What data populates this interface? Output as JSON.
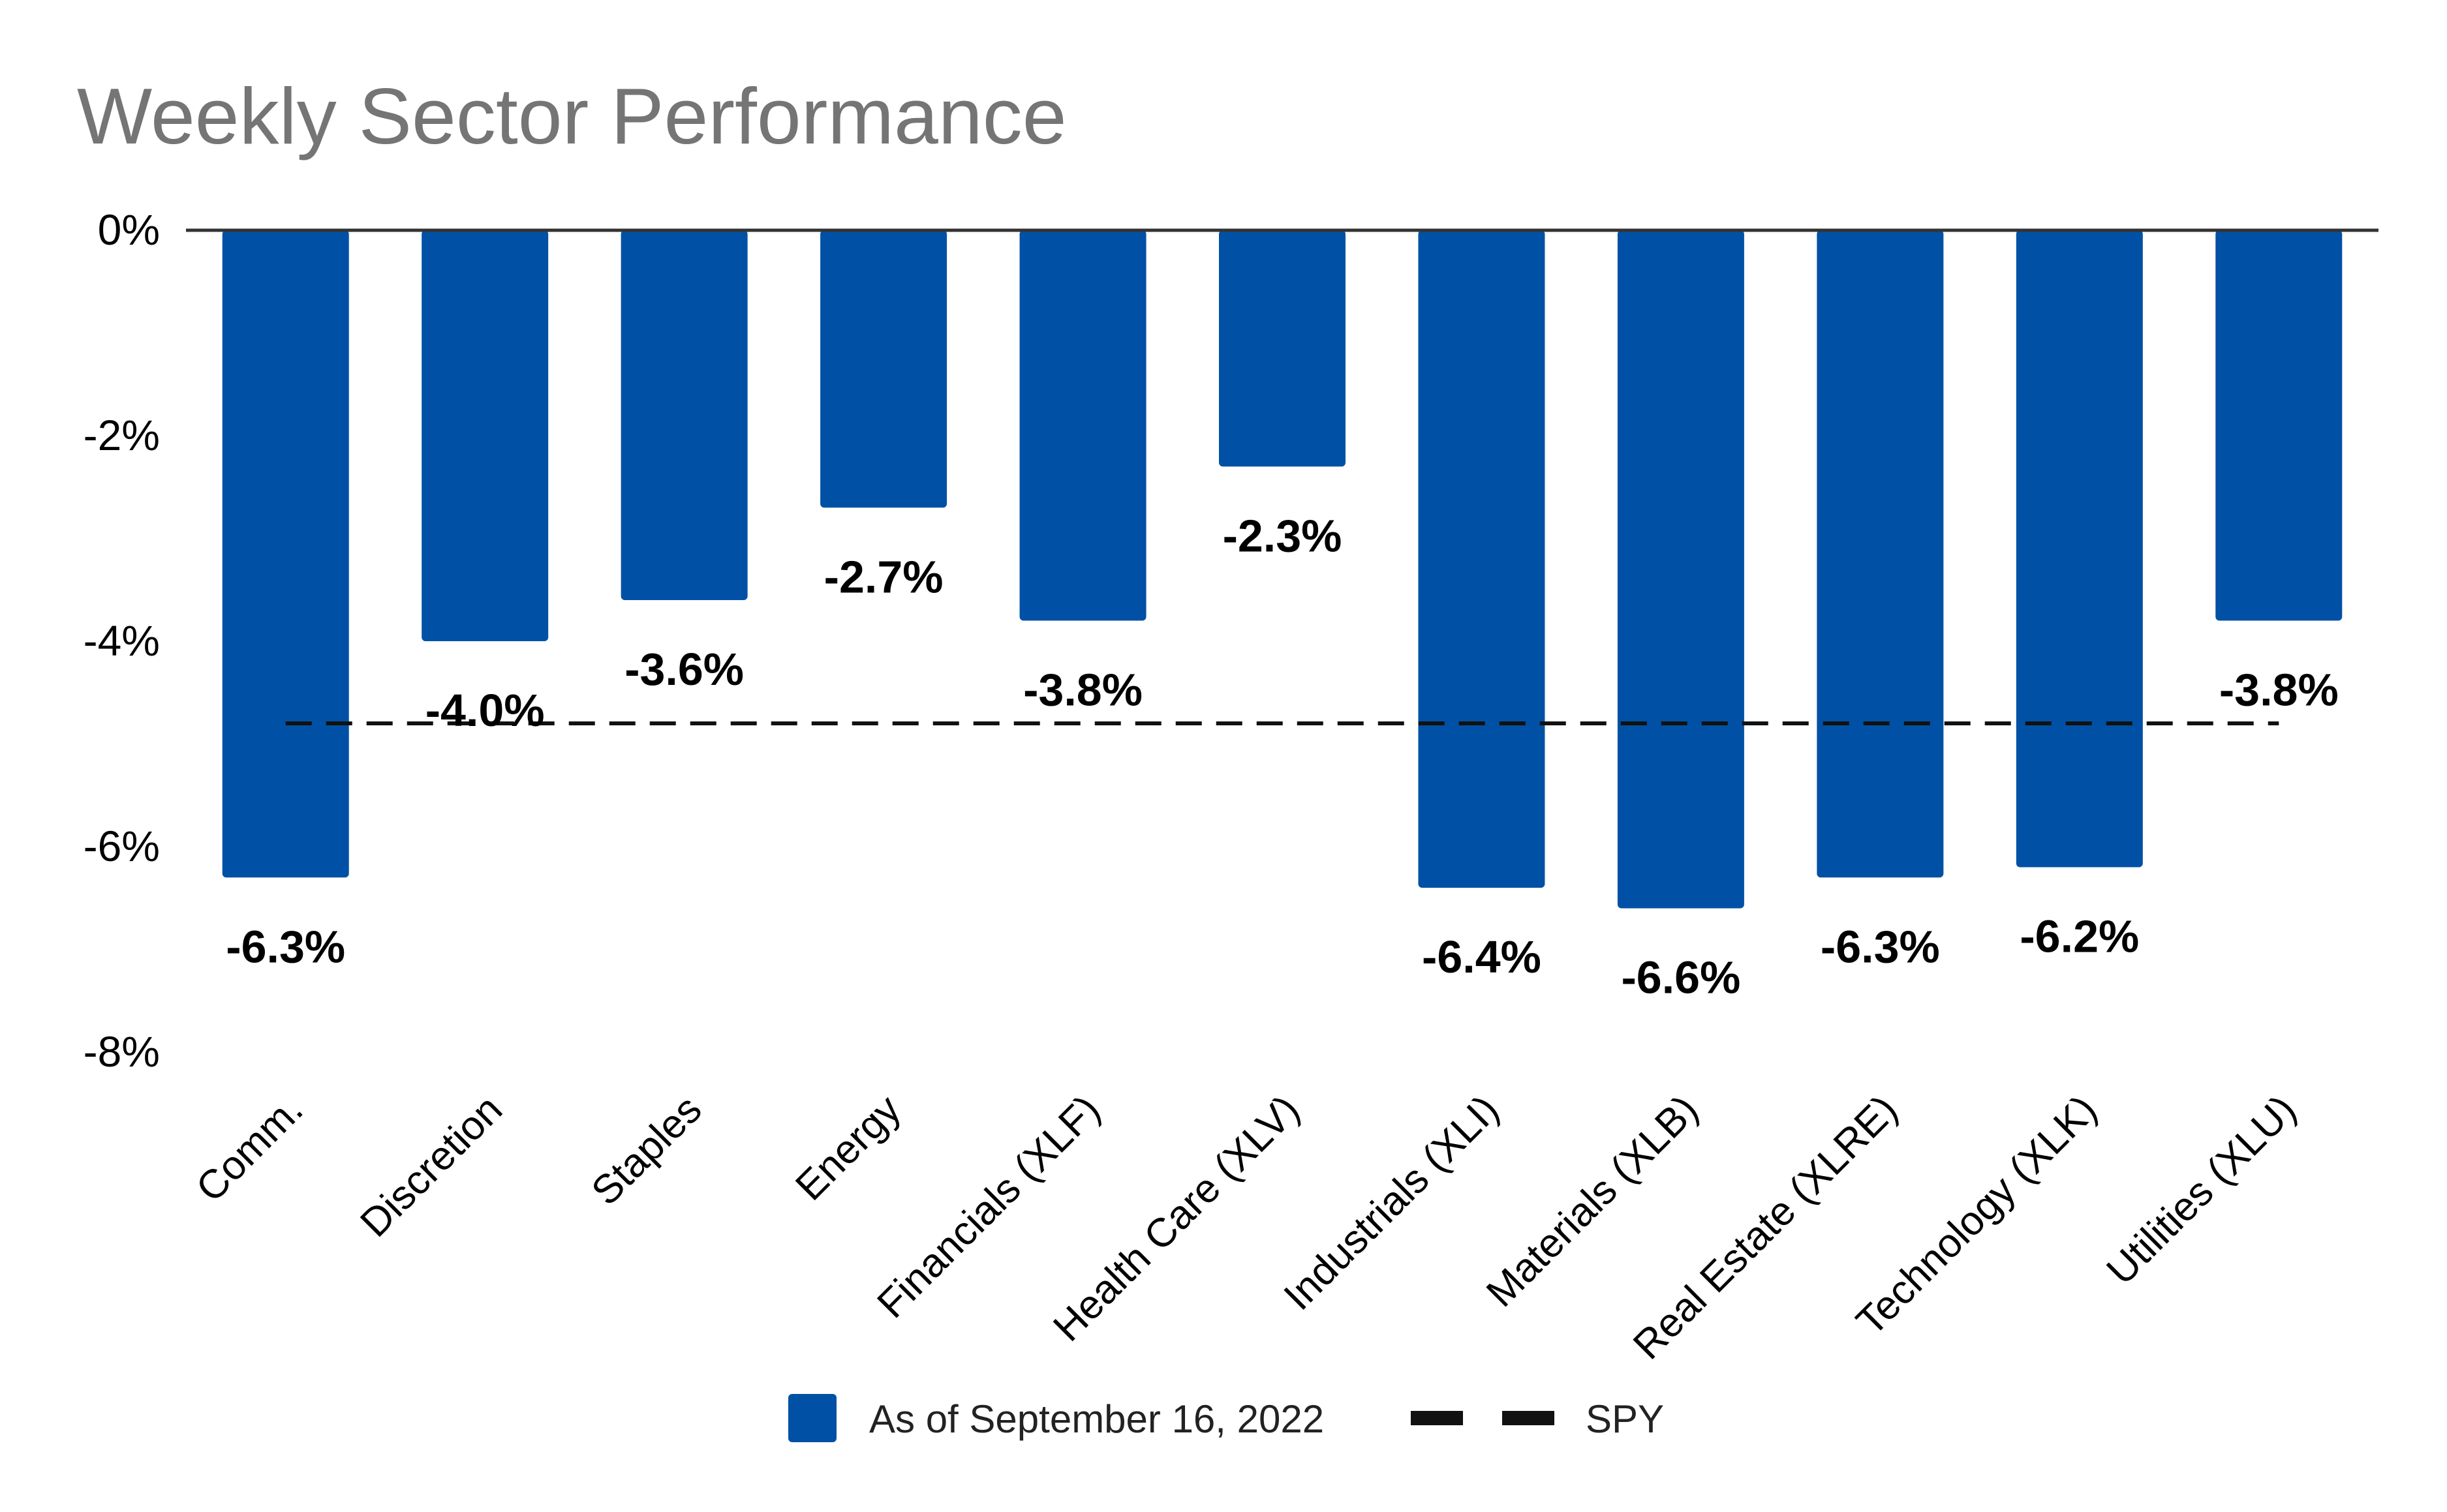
{
  "chart_data": {
    "type": "bar",
    "title": "Weekly Sector Performance",
    "categories": [
      "Comm.",
      "Discretion",
      "Staples",
      "Energy",
      "Financials (XLF)",
      "Health Care (XLV)",
      "Industrials (XLI)",
      "Materials (XLB)",
      "Real Estate (XLRE)",
      "Technology (XLK)",
      "Utilities (XLU)"
    ],
    "series": [
      {
        "name": "As of September 16, 2022",
        "values": [
          -6.3,
          -4.0,
          -3.6,
          -2.7,
          -3.8,
          -2.3,
          -6.4,
          -6.6,
          -6.3,
          -6.2,
          -3.8
        ],
        "labels": [
          "-6.3%",
          "-4.0%",
          "-3.6%",
          "-2.7%",
          "-3.8%",
          "-2.3%",
          "-6.4%",
          "-6.6%",
          "-6.3%",
          "-6.2%",
          "-3.8%"
        ],
        "color": "#0051A5"
      }
    ],
    "reference_line": {
      "name": "SPY",
      "value": -4.8,
      "style": "dashed",
      "color": "#111111"
    },
    "ylim": [
      -8,
      0
    ],
    "yticks": [
      0,
      -2,
      -4,
      -6,
      -8
    ],
    "ytick_labels": [
      "0%",
      "-2%",
      "-4%",
      "-6%",
      "-8%"
    ],
    "xlabel": "",
    "ylabel": "",
    "grid": false,
    "legend": {
      "position": "bottom-center",
      "entries": [
        "As of September 16, 2022",
        "SPY"
      ]
    }
  }
}
